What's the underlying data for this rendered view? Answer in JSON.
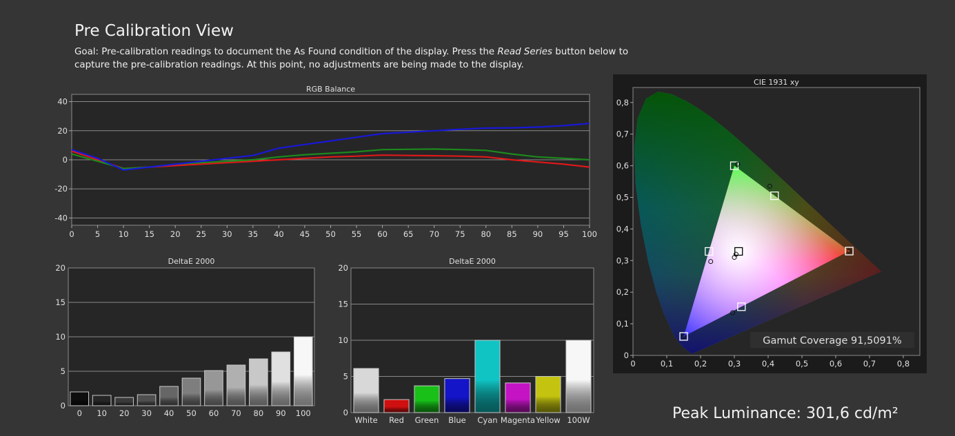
{
  "page": {
    "title": "Pre Calibration View",
    "goal_prefix": "Goal: Pre-calibration readings to document the As Found condition of the display. Press the ",
    "goal_emphasis": "Read Series",
    "goal_suffix": " button below to capture the pre-calibration readings. At this point, no adjustments are being made to the display.",
    "peak_luminance": "Peak Luminance: 301,6 cd/m²"
  },
  "colors": {
    "background": "#353535",
    "plot_bg": "#262626",
    "red": "#e01818",
    "green": "#1c8a1c",
    "blue": "#1818d8"
  },
  "chart_data": [
    {
      "id": "rgb",
      "type": "line",
      "title": "RGB Balance",
      "x": [
        0,
        5,
        10,
        15,
        20,
        25,
        30,
        35,
        40,
        45,
        50,
        55,
        60,
        65,
        70,
        75,
        80,
        85,
        90,
        95,
        100
      ],
      "xlim": [
        0,
        100
      ],
      "ylim": [
        -45,
        45
      ],
      "yticks": [
        -40,
        -20,
        0,
        20,
        40
      ],
      "grid": true,
      "series": [
        {
          "color": "red",
          "values": [
            6,
            0,
            -6,
            -5,
            -4,
            -3,
            -2,
            -1,
            0,
            1,
            2,
            2.5,
            3.2,
            3,
            2.8,
            2.5,
            2,
            0,
            -1.5,
            -3,
            -5
          ]
        },
        {
          "color": "green",
          "values": [
            4,
            -1,
            -6,
            -5,
            -3,
            -2,
            -1,
            0,
            2,
            3.5,
            4.5,
            5.5,
            7,
            7.2,
            7.4,
            7,
            6.5,
            4,
            2,
            1,
            0
          ]
        },
        {
          "color": "blue",
          "values": [
            7,
            1,
            -7,
            -5,
            -3,
            -1,
            1,
            3,
            8,
            10.5,
            13,
            15.5,
            18,
            19,
            20,
            21,
            21.8,
            22,
            22.5,
            23.5,
            25
          ]
        }
      ]
    },
    {
      "id": "de-gray",
      "type": "bar",
      "title": "DeltaE 2000",
      "categories": [
        "0",
        "10",
        "20",
        "30",
        "40",
        "50",
        "60",
        "70",
        "80",
        "90",
        "100"
      ],
      "values": [
        2.0,
        1.5,
        1.2,
        1.6,
        2.8,
        4.0,
        5.1,
        5.9,
        6.8,
        7.8,
        10.0
      ],
      "bar_colors": [
        "#0e0e0e",
        "#262626",
        "#3a3a3a",
        "#4f4f4f",
        "#666666",
        "#7e7e7e",
        "#979797",
        "#b0b0b0",
        "#c8c8c8",
        "#e0e0e0",
        "#f7f7f7"
      ],
      "ylim": [
        0,
        20
      ],
      "yticks": [
        0,
        5,
        10,
        15,
        20
      ],
      "grid": true
    },
    {
      "id": "de-color",
      "type": "bar",
      "title": "DeltaE 2000",
      "categories": [
        "White",
        "Red",
        "Green",
        "Blue",
        "Cyan",
        "Magenta",
        "Yellow",
        "100W"
      ],
      "values": [
        6.1,
        1.8,
        3.7,
        4.7,
        10.0,
        4.1,
        5.0,
        10.0
      ],
      "bar_colors": [
        "#d8d8d8",
        "#d01010",
        "#18c018",
        "#1414c8",
        "#10c4c4",
        "#c414c4",
        "#c4c410",
        "#f7f7f7"
      ],
      "ylim": [
        0,
        20
      ],
      "yticks": [
        0,
        5,
        10,
        15,
        20
      ],
      "grid": true
    },
    {
      "id": "cie",
      "type": "scatter",
      "title": "CIE 1931 xy",
      "xlim": [
        0,
        0.85
      ],
      "ylim": [
        0,
        0.85
      ],
      "xticks": [
        "0",
        "0,1",
        "0,2",
        "0,3",
        "0,4",
        "0,5",
        "0,6",
        "0,7",
        "0,8"
      ],
      "yticks": [
        "0",
        "0,1",
        "0,2",
        "0,3",
        "0,4",
        "0,5",
        "0,6",
        "0,7",
        "0,8"
      ],
      "targets": [
        {
          "x": 0.64,
          "y": 0.33
        },
        {
          "x": 0.3,
          "y": 0.6
        },
        {
          "x": 0.15,
          "y": 0.06
        },
        {
          "x": 0.225,
          "y": 0.329
        },
        {
          "x": 0.321,
          "y": 0.154
        },
        {
          "x": 0.419,
          "y": 0.505
        },
        {
          "x": 0.3127,
          "y": 0.329
        }
      ],
      "measured": [
        {
          "x": 0.64,
          "y": 0.33
        },
        {
          "x": 0.31,
          "y": 0.605
        },
        {
          "x": 0.15,
          "y": 0.06
        },
        {
          "x": 0.23,
          "y": 0.297
        },
        {
          "x": 0.295,
          "y": 0.135
        },
        {
          "x": 0.405,
          "y": 0.535
        },
        {
          "x": 0.3,
          "y": 0.31
        },
        {
          "x": 0.305,
          "y": 0.32
        }
      ],
      "gamut_coverage": "Gamut Coverage 91,5091%"
    }
  ]
}
